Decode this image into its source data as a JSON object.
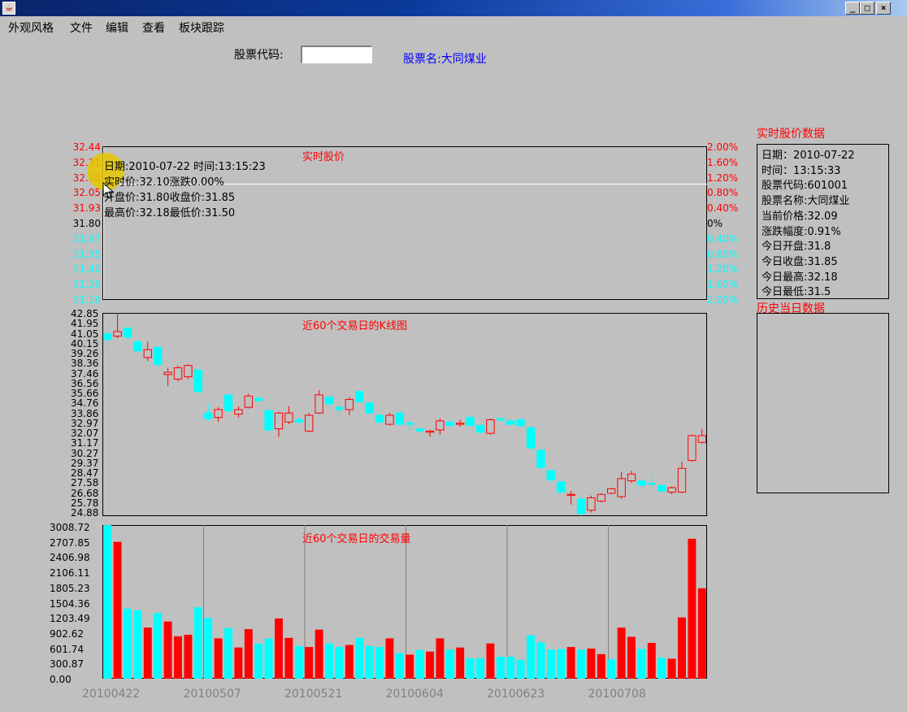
{
  "window": {
    "min_glyph": "_",
    "max_glyph": "□",
    "close_glyph": "×",
    "icon": "java-icon"
  },
  "menu": [
    "外观风格",
    "文件",
    "编辑",
    "查看",
    "板块跟踪"
  ],
  "search": {
    "label": "股票代码:",
    "value": "",
    "stock_name": "股票名:大同煤业"
  },
  "realtime_chart": {
    "title": "实时股价",
    "left_ticks": [
      "32.44",
      "32.31",
      "32.18",
      "32.05",
      "31.93",
      "31.80",
      "31.67",
      "31.55",
      "31.42",
      "31.29",
      "31.16"
    ],
    "right_ticks": [
      "2.00%",
      "1.60%",
      "1.20%",
      "0.80%",
      "0.40%",
      "0%",
      "0.40%",
      "0.80%",
      "1.20%",
      "1.60%",
      "2.00%"
    ],
    "tick_colors": [
      "#ff0000",
      "#ff0000",
      "#ff0000",
      "#ff0000",
      "#ff0000",
      "#000000",
      "#00ffff",
      "#00ffff",
      "#00ffff",
      "#00ffff",
      "#00ffff"
    ],
    "info_lines": [
      "日期:2010-07-22 时间:13:15:23",
      "实时价:32.10涨跌0.00%",
      "开盘价:31.80收盘价:31.85",
      "最高价:32.18最低价:31.50"
    ],
    "price_level": 32.1
  },
  "kline_chart": {
    "title": "近60个交易日的K线图",
    "y_ticks": [
      "42.85",
      "41.95",
      "41.05",
      "40.15",
      "39.26",
      "38.36",
      "37.46",
      "36.56",
      "35.66",
      "34.76",
      "33.86",
      "32.97",
      "32.07",
      "31.17",
      "30.27",
      "29.37",
      "28.47",
      "27.58",
      "26.68",
      "25.78",
      "24.88"
    ]
  },
  "volume_chart": {
    "title": "近60个交易日的交易量",
    "y_ticks": [
      "3008.72",
      "2707.85",
      "2406.98",
      "2106.11",
      "1805.23",
      "1504.36",
      "1203.49",
      "902.62",
      "601.74",
      "300.87",
      "0.00"
    ],
    "x_dates": [
      "20100422",
      "20100507",
      "20100521",
      "20100604",
      "20100623",
      "20100708"
    ]
  },
  "chart_data": [
    {
      "type": "candlestick",
      "title": "近60个交易日的K线图",
      "ylim": [
        24.88,
        42.85
      ],
      "up_color": "#ff0000",
      "down_color": "#00ffff",
      "candles": [
        {
          "o": 41.0,
          "c": 40.5,
          "h": 41.3,
          "l": 39.9
        },
        {
          "o": 40.8,
          "c": 41.2,
          "h": 42.85,
          "l": 40.6
        },
        {
          "o": 41.5,
          "c": 40.7,
          "h": 41.6,
          "l": 40.4
        },
        {
          "o": 40.3,
          "c": 39.5,
          "h": 40.4,
          "l": 39.3
        },
        {
          "o": 38.9,
          "c": 39.6,
          "h": 40.3,
          "l": 38.6
        },
        {
          "o": 39.8,
          "c": 38.3,
          "h": 39.9,
          "l": 38.0
        },
        {
          "o": 37.4,
          "c": 37.6,
          "h": 38.0,
          "l": 36.4
        },
        {
          "o": 37.0,
          "c": 38.0,
          "h": 38.2,
          "l": 36.8
        },
        {
          "o": 37.2,
          "c": 38.2,
          "h": 38.3,
          "l": 37.0
        },
        {
          "o": 37.8,
          "c": 35.9,
          "h": 37.9,
          "l": 35.7
        },
        {
          "o": 34.0,
          "c": 33.5,
          "h": 34.8,
          "l": 33.3
        },
        {
          "o": 33.6,
          "c": 34.3,
          "h": 34.5,
          "l": 33.2
        },
        {
          "o": 35.6,
          "c": 34.2,
          "h": 35.7,
          "l": 34.1
        },
        {
          "o": 33.9,
          "c": 34.3,
          "h": 34.6,
          "l": 33.6
        },
        {
          "o": 34.5,
          "c": 35.5,
          "h": 35.7,
          "l": 34.4
        },
        {
          "o": 35.3,
          "c": 35.1,
          "h": 35.4,
          "l": 34.9
        },
        {
          "o": 34.2,
          "c": 32.5,
          "h": 34.3,
          "l": 32.4
        },
        {
          "o": 32.6,
          "c": 34.0,
          "h": 34.1,
          "l": 31.9
        },
        {
          "o": 33.2,
          "c": 34.0,
          "h": 34.6,
          "l": 33.0
        },
        {
          "o": 33.4,
          "c": 33.2,
          "h": 33.6,
          "l": 33.0
        },
        {
          "o": 32.4,
          "c": 33.8,
          "h": 34.0,
          "l": 32.3
        },
        {
          "o": 34.0,
          "c": 35.6,
          "h": 36.0,
          "l": 33.9
        },
        {
          "o": 35.4,
          "c": 34.8,
          "h": 35.5,
          "l": 34.7
        },
        {
          "o": 34.5,
          "c": 34.3,
          "h": 34.8,
          "l": 33.7
        },
        {
          "o": 34.3,
          "c": 35.2,
          "h": 35.4,
          "l": 33.8
        },
        {
          "o": 35.9,
          "c": 35.0,
          "h": 36.0,
          "l": 34.9
        },
        {
          "o": 34.9,
          "c": 34.0,
          "h": 35.0,
          "l": 33.9
        },
        {
          "o": 33.8,
          "c": 33.2,
          "h": 33.9,
          "l": 33.0
        },
        {
          "o": 33.0,
          "c": 33.8,
          "h": 34.0,
          "l": 32.9
        },
        {
          "o": 34.0,
          "c": 33.0,
          "h": 34.1,
          "l": 32.9
        },
        {
          "o": 33.1,
          "c": 33.0,
          "h": 33.3,
          "l": 32.4
        },
        {
          "o": 32.6,
          "c": 32.4,
          "h": 32.7,
          "l": 32.1
        },
        {
          "o": 32.3,
          "c": 32.4,
          "h": 32.5,
          "l": 31.9
        },
        {
          "o": 32.5,
          "c": 33.3,
          "h": 33.5,
          "l": 32.1
        },
        {
          "o": 33.2,
          "c": 32.9,
          "h": 33.3,
          "l": 32.8
        },
        {
          "o": 33.0,
          "c": 33.1,
          "h": 33.4,
          "l": 32.8
        },
        {
          "o": 33.6,
          "c": 32.9,
          "h": 33.7,
          "l": 32.8
        },
        {
          "o": 32.9,
          "c": 32.3,
          "h": 33.0,
          "l": 32.2
        },
        {
          "o": 32.2,
          "c": 33.4,
          "h": 33.5,
          "l": 32.1
        },
        {
          "o": 33.5,
          "c": 33.4,
          "h": 33.6,
          "l": 33.2
        },
        {
          "o": 33.3,
          "c": 33.0,
          "h": 33.4,
          "l": 32.9
        },
        {
          "o": 33.4,
          "c": 32.9,
          "h": 33.5,
          "l": 32.7
        },
        {
          "o": 32.7,
          "c": 30.9,
          "h": 32.8,
          "l": 30.8
        },
        {
          "o": 30.7,
          "c": 29.2,
          "h": 30.8,
          "l": 29.0
        },
        {
          "o": 28.9,
          "c": 28.1,
          "h": 29.0,
          "l": 27.9
        },
        {
          "o": 27.9,
          "c": 27.0,
          "h": 28.0,
          "l": 26.9
        },
        {
          "o": 26.8,
          "c": 26.8,
          "h": 27.1,
          "l": 25.9
        },
        {
          "o": 26.4,
          "c": 25.1,
          "h": 26.5,
          "l": 24.9
        },
        {
          "o": 25.4,
          "c": 26.5,
          "h": 26.7,
          "l": 25.2
        },
        {
          "o": 26.2,
          "c": 26.8,
          "h": 26.9,
          "l": 26.1
        },
        {
          "o": 26.9,
          "c": 27.3,
          "h": 27.4,
          "l": 26.8
        },
        {
          "o": 26.6,
          "c": 28.2,
          "h": 28.8,
          "l": 26.4
        },
        {
          "o": 28.0,
          "c": 28.6,
          "h": 28.9,
          "l": 27.8
        },
        {
          "o": 28.0,
          "c": 27.6,
          "h": 28.1,
          "l": 27.4
        },
        {
          "o": 27.8,
          "c": 27.7,
          "h": 28.6,
          "l": 27.5
        },
        {
          "o": 27.6,
          "c": 27.1,
          "h": 27.7,
          "l": 27.0
        },
        {
          "o": 27.0,
          "c": 27.4,
          "h": 27.5,
          "l": 26.8
        },
        {
          "o": 27.0,
          "c": 29.1,
          "h": 29.7,
          "l": 26.9
        },
        {
          "o": 29.8,
          "c": 32.0,
          "h": 32.1,
          "l": 29.7
        },
        {
          "o": 31.4,
          "c": 32.0,
          "h": 32.6,
          "l": 31.3
        }
      ]
    },
    {
      "type": "bar",
      "title": "近60个交易日的交易量",
      "ylim": [
        0,
        3008.72
      ],
      "values": [
        3008,
        2680,
        1370,
        1340,
        1000,
        1290,
        1120,
        830,
        860,
        1400,
        1190,
        790,
        990,
        610,
        970,
        690,
        790,
        1180,
        800,
        640,
        620,
        960,
        690,
        620,
        660,
        800,
        640,
        620,
        790,
        500,
        470,
        560,
        530,
        790,
        570,
        610,
        400,
        400,
        690,
        430,
        430,
        370,
        850,
        710,
        570,
        580,
        620,
        570,
        590,
        480,
        380,
        1000,
        820,
        580,
        700,
        410,
        390,
        1200,
        2740,
        1770
      ],
      "ups": [
        false,
        true,
        false,
        false,
        true,
        false,
        true,
        true,
        true,
        false,
        false,
        true,
        false,
        true,
        true,
        false,
        false,
        true,
        true,
        false,
        true,
        true,
        false,
        false,
        true,
        false,
        false,
        false,
        true,
        false,
        true,
        false,
        true,
        true,
        false,
        true,
        false,
        false,
        true,
        false,
        false,
        false,
        false,
        false,
        false,
        false,
        true,
        false,
        true,
        true,
        false,
        true,
        true,
        false,
        true,
        false,
        true,
        true,
        true,
        true
      ]
    }
  ],
  "side_panel": {
    "title": "实时股价数据",
    "lines": [
      "日期：2010-07-22",
      "时间：13:15:33",
      "股票代码:601001",
      "股票名称:大同煤业",
      "当前价格:32.09",
      "涨跌幅度:0.91%",
      "今日开盘:31.8",
      "今日收盘:31.85",
      "今日最高:32.18",
      "今日最低:31.5"
    ],
    "history_title": "历史当日数据"
  }
}
